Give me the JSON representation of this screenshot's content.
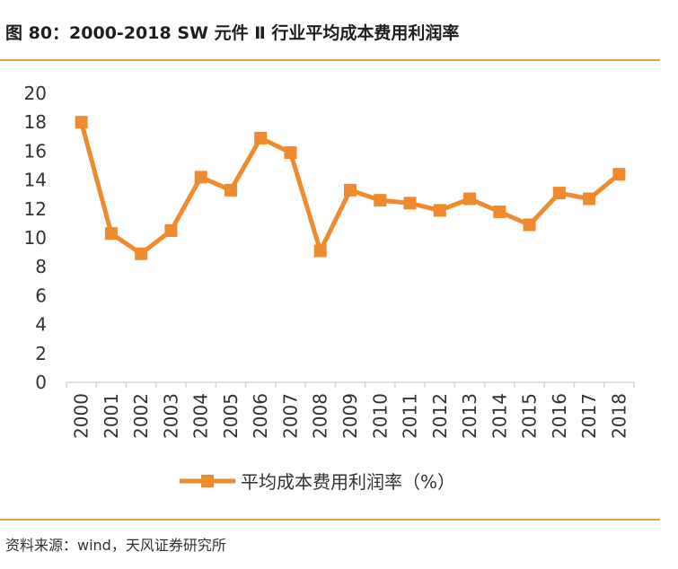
{
  "title": "图 80：2000-2018 SW 元件 Ⅱ 行业平均成本费用利润率",
  "source": "资料来源：wind，天风证券研究所",
  "colors": {
    "series": "#f08a2e",
    "rule": "#e8a44a",
    "axis": "#d9d9d9",
    "text": "#333333"
  },
  "chart_data": {
    "type": "line",
    "title": "",
    "xlabel": "",
    "ylabel": "",
    "ylim": [
      0,
      20
    ],
    "yticks": [
      "0",
      "2",
      "4",
      "6",
      "8",
      "10",
      "12",
      "14",
      "16",
      "18",
      "20"
    ],
    "categories": [
      "2000",
      "2001",
      "2002",
      "2003",
      "2004",
      "2005",
      "2006",
      "2007",
      "2008",
      "2009",
      "2010",
      "2011",
      "2012",
      "2013",
      "2014",
      "2015",
      "2016",
      "2017",
      "2018"
    ],
    "series": [
      {
        "name": "平均成本费用利润率（%）",
        "values": [
          18.0,
          10.3,
          8.9,
          10.5,
          14.2,
          13.3,
          16.9,
          15.9,
          9.1,
          13.3,
          12.6,
          12.4,
          11.9,
          12.7,
          11.8,
          10.9,
          13.1,
          12.7,
          14.4
        ]
      }
    ],
    "grid": false,
    "legend": "bottom",
    "marker": "square"
  }
}
